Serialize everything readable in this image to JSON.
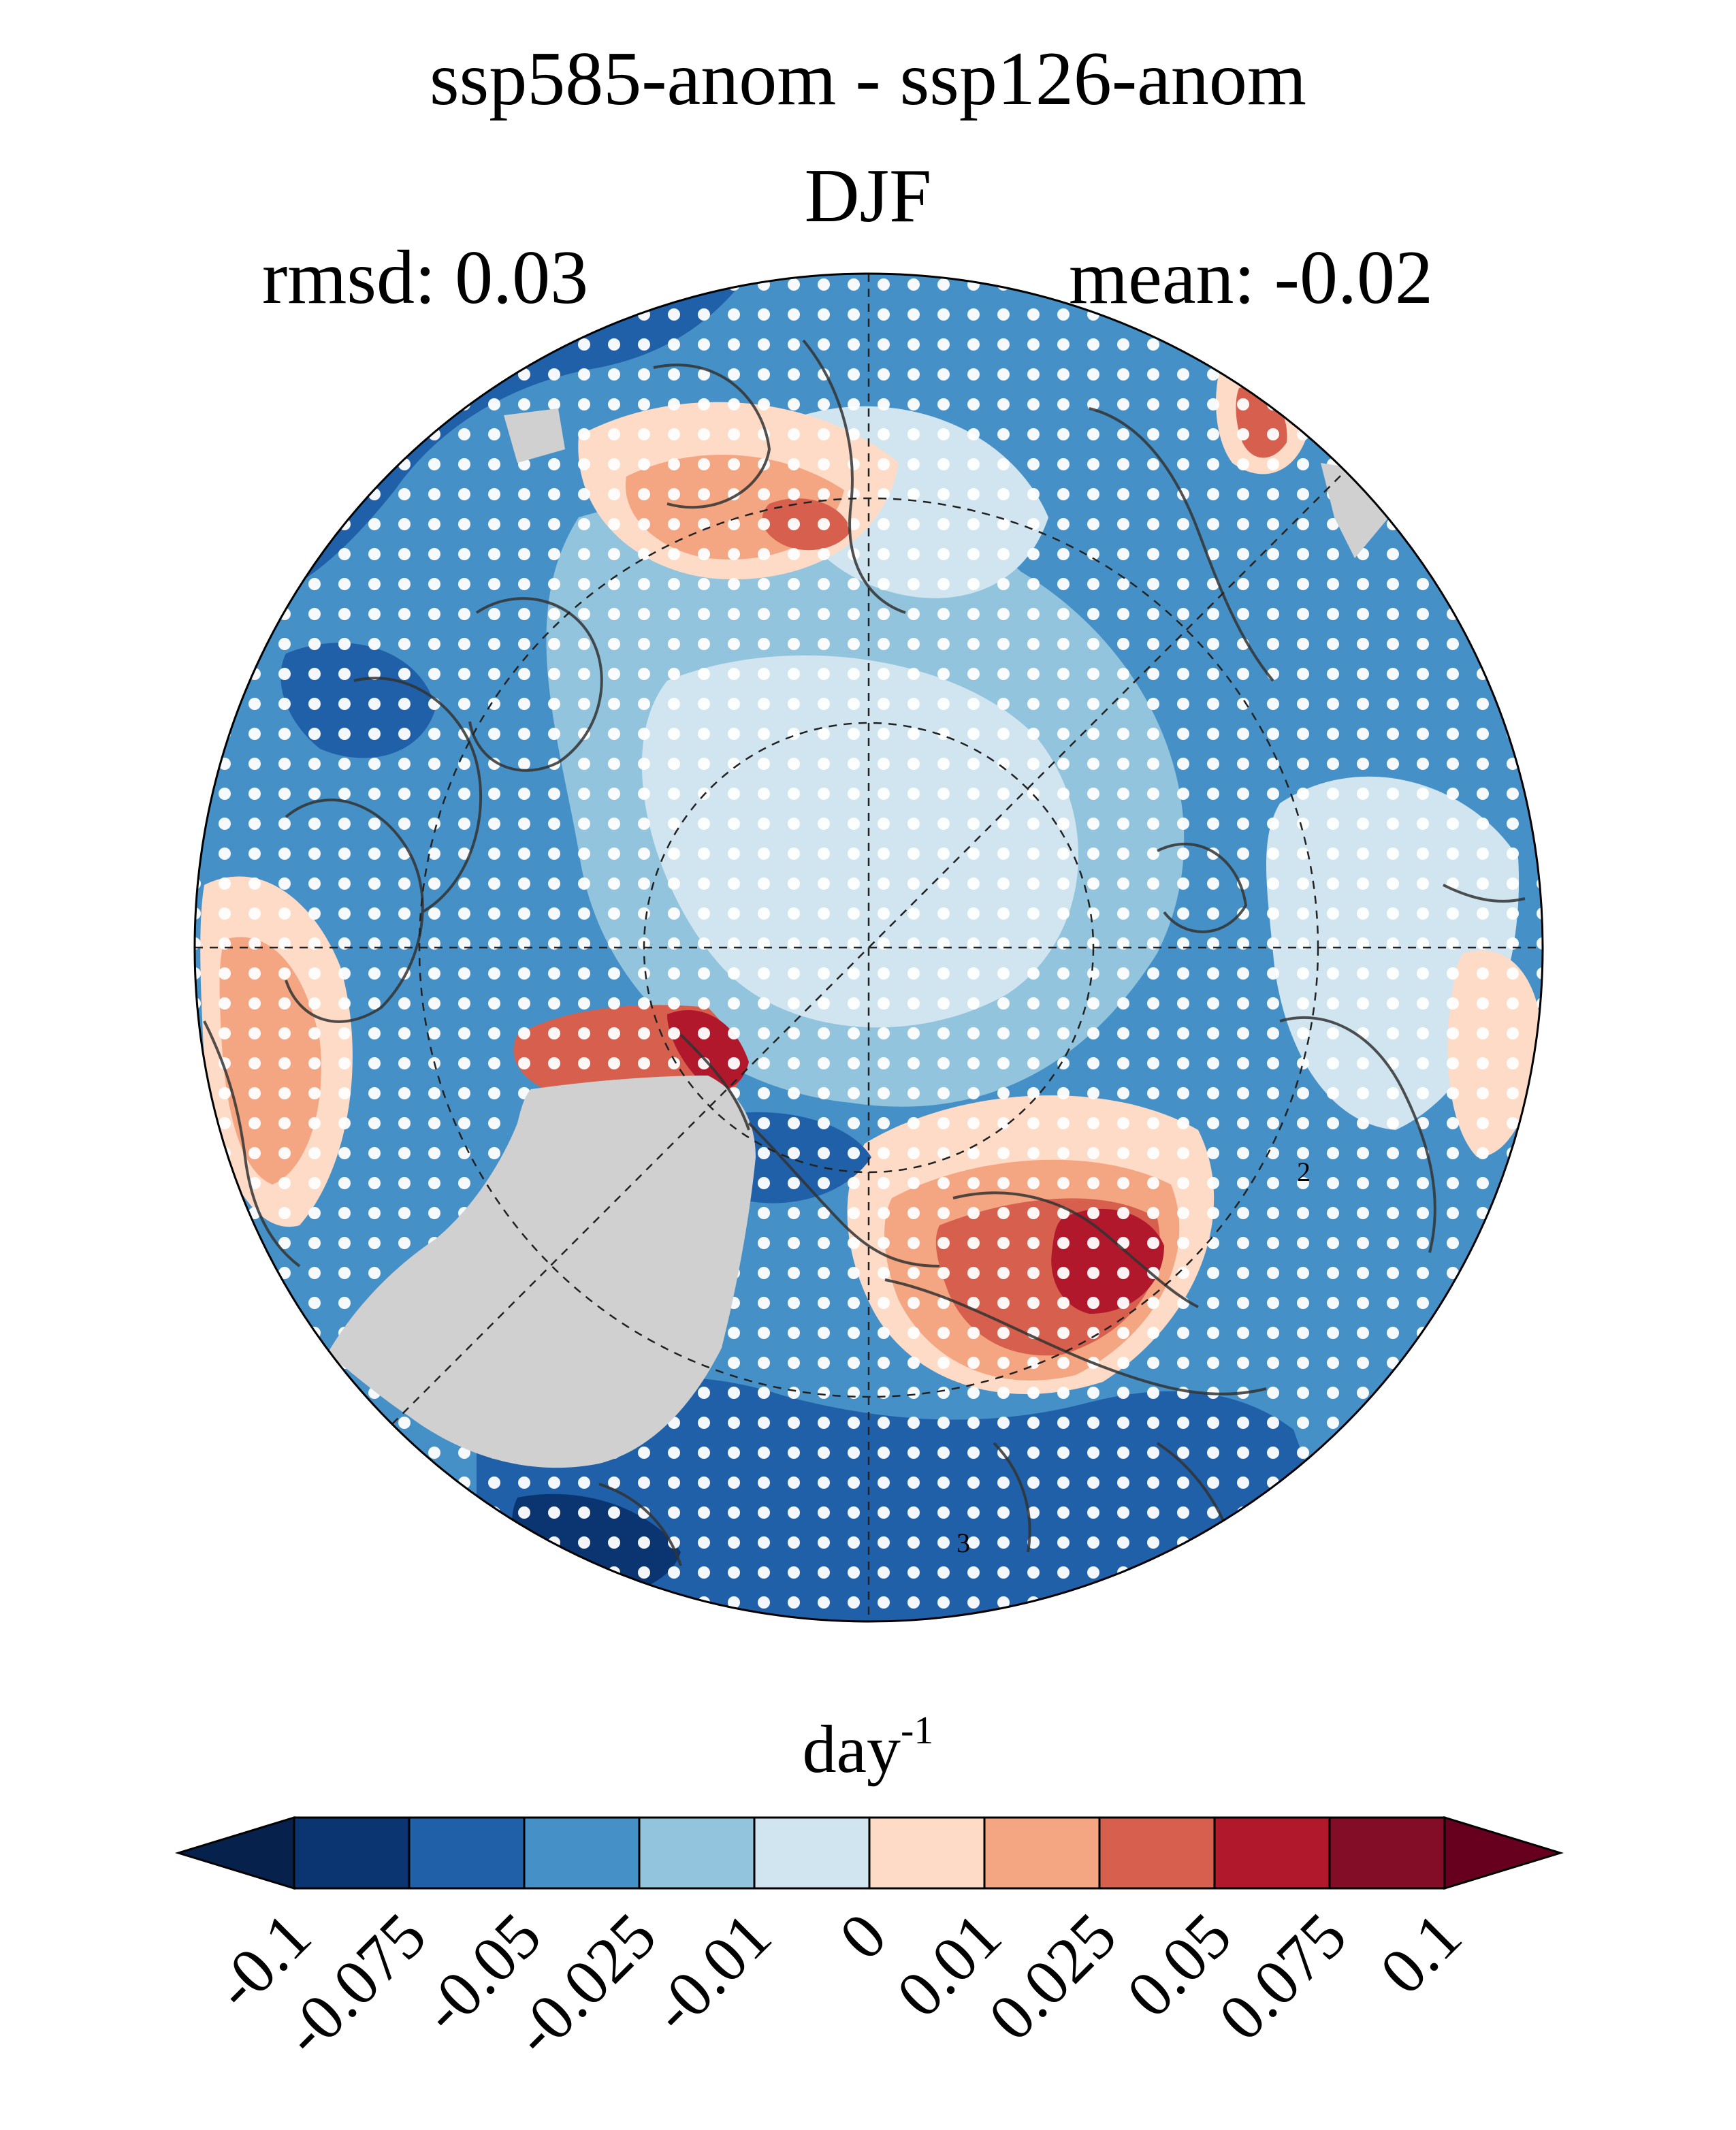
{
  "title": "ssp585-anom - ssp126-anom",
  "season": "DJF",
  "stats": {
    "rmsd_label": "rmsd:",
    "rmsd_value": "0.03",
    "mean_label": "mean:",
    "mean_value": "-0.02"
  },
  "colorbar": {
    "unit_base": "day",
    "unit_exponent": "-1",
    "levels": [
      "-0.1",
      "-0.075",
      "-0.05",
      "-0.025",
      "-0.01",
      "0",
      "0.01",
      "0.025",
      "0.05",
      "0.075",
      "0.1"
    ],
    "colors": [
      "#06214c",
      "#0a3570",
      "#2060a8",
      "#4591c7",
      "#92c4de",
      "#d1e5f0",
      "#fddbc7",
      "#f4a582",
      "#d6604d",
      "#b2182b",
      "#830d26",
      "#67001f"
    ],
    "extend": "both"
  },
  "map": {
    "projection": "north-polar-stereographic",
    "land_mask_color": "#d0d0d0",
    "stippling_color": "#ffffff",
    "contour_color": "#333333",
    "contour_labels": [
      "2",
      "3"
    ]
  }
}
